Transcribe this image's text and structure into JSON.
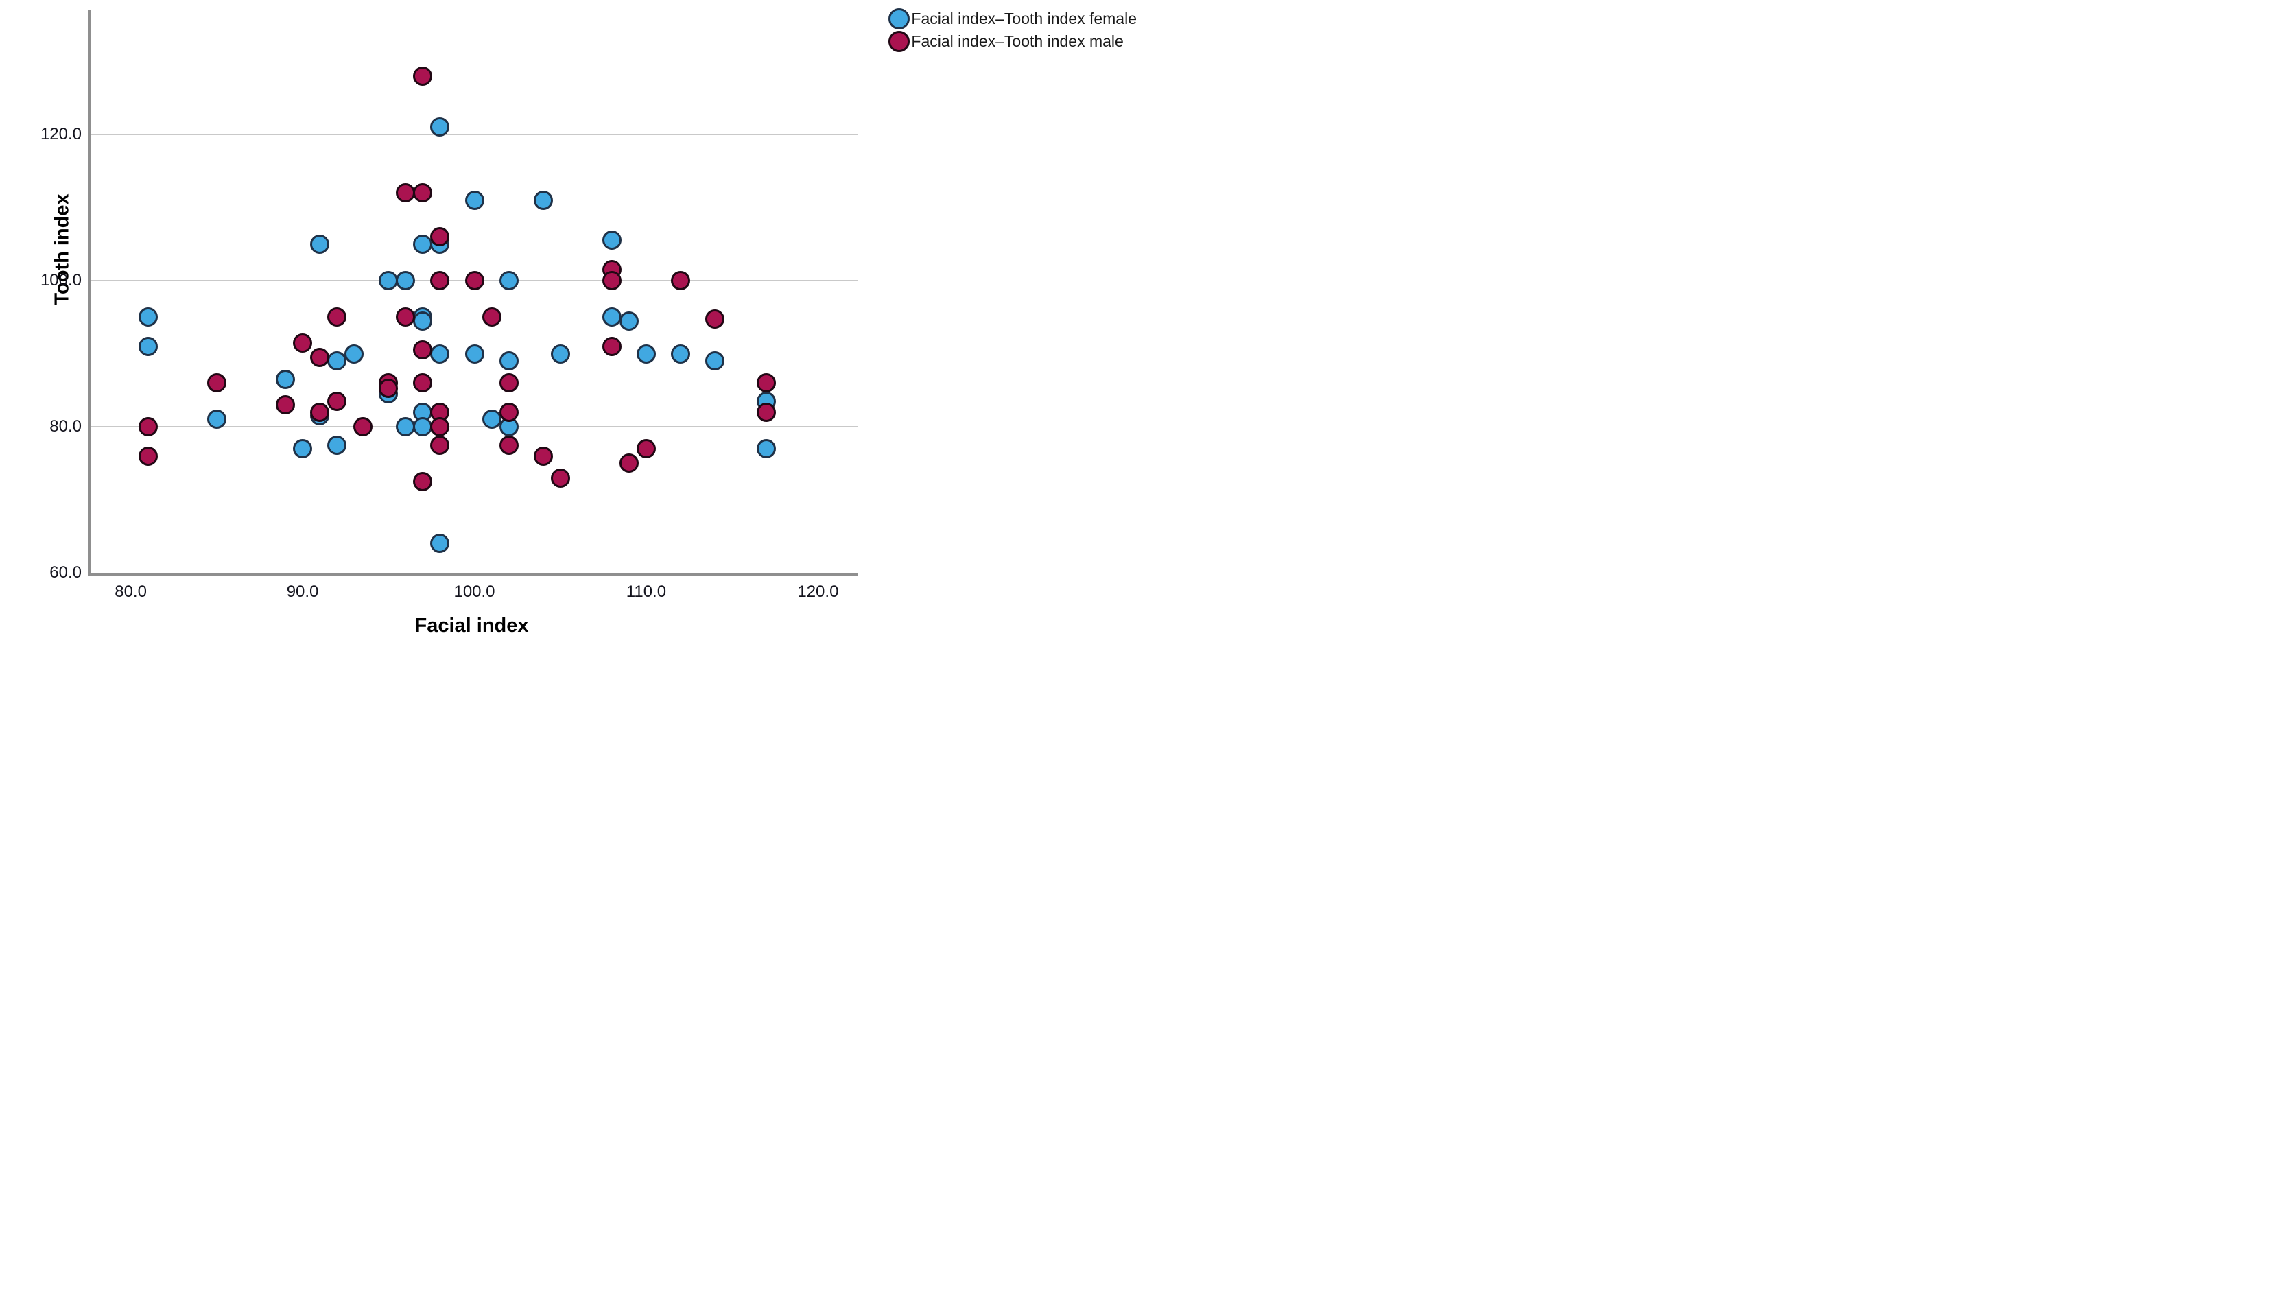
{
  "chart_data": {
    "type": "scatter",
    "title": "",
    "xlabel": "Facial index",
    "ylabel": "Tooth index",
    "xlim": [
      77.7,
      122.3
    ],
    "ylim": [
      60,
      137
    ],
    "grid": "horizontal-only",
    "legend_position": "top-right",
    "x_ticks": [
      {
        "v": 80,
        "label": "80.0"
      },
      {
        "v": 90,
        "label": "90.0"
      },
      {
        "v": 100,
        "label": "100.0"
      },
      {
        "v": 110,
        "label": "110.0"
      },
      {
        "v": 120,
        "label": "120.0"
      }
    ],
    "y_ticks": [
      {
        "v": 60,
        "label": "60.0"
      },
      {
        "v": 80,
        "label": "80.0"
      },
      {
        "v": 100,
        "label": "100.0"
      },
      {
        "v": 120,
        "label": "120.0"
      }
    ],
    "y_gridlines": [
      80,
      100,
      120
    ],
    "colors": {
      "female_fill": "#41A8E1",
      "female_stroke": "#1F3147",
      "male_fill": "#AA1350",
      "male_stroke": "#200814",
      "gridline": "#C9C9C9",
      "axis": "#8F8F8F",
      "tick_text": "#14141E"
    },
    "series": [
      {
        "name": "Facial index–Tooth index female",
        "key": "female",
        "points": [
          [
            81,
            95
          ],
          [
            81,
            91
          ],
          [
            85,
            81
          ],
          [
            89,
            86.5
          ],
          [
            90,
            77
          ],
          [
            91,
            105
          ],
          [
            91,
            81.5
          ],
          [
            92,
            89
          ],
          [
            92,
            77.5
          ],
          [
            93,
            90
          ],
          [
            95,
            100
          ],
          [
            95,
            84.5
          ],
          [
            96,
            100
          ],
          [
            96,
            80
          ],
          [
            97,
            105
          ],
          [
            97,
            95
          ],
          [
            97,
            94.5
          ],
          [
            97,
            82
          ],
          [
            97,
            80
          ],
          [
            98,
            121
          ],
          [
            98,
            105
          ],
          [
            98,
            90
          ],
          [
            98,
            64
          ],
          [
            100,
            111
          ],
          [
            100,
            90
          ],
          [
            101,
            81
          ],
          [
            102,
            100
          ],
          [
            102,
            89
          ],
          [
            102,
            80
          ],
          [
            104,
            111
          ],
          [
            105,
            90
          ],
          [
            108,
            105.5
          ],
          [
            108,
            95
          ],
          [
            109,
            94.5
          ],
          [
            110,
            90
          ],
          [
            112,
            90
          ],
          [
            114,
            89
          ],
          [
            117,
            83.5
          ],
          [
            117,
            77
          ]
        ]
      },
      {
        "name": "Facial index–Tooth index male",
        "key": "male",
        "points": [
          [
            81,
            80
          ],
          [
            81,
            76
          ],
          [
            85,
            86
          ],
          [
            89,
            83
          ],
          [
            90,
            91.5
          ],
          [
            91,
            89.5
          ],
          [
            91,
            82
          ],
          [
            92,
            95
          ],
          [
            92,
            83.5
          ],
          [
            93.5,
            80
          ],
          [
            95,
            86
          ],
          [
            95,
            85.3
          ],
          [
            96,
            112
          ],
          [
            96,
            95
          ],
          [
            97,
            128
          ],
          [
            97,
            112
          ],
          [
            97,
            90.5
          ],
          [
            97,
            86
          ],
          [
            97,
            72.5
          ],
          [
            98,
            106
          ],
          [
            98,
            100
          ],
          [
            98,
            82
          ],
          [
            98,
            80
          ],
          [
            98,
            77.5
          ],
          [
            100,
            100
          ],
          [
            101,
            95
          ],
          [
            102,
            86
          ],
          [
            102,
            82
          ],
          [
            102,
            77.5
          ],
          [
            104,
            76
          ],
          [
            105,
            73
          ],
          [
            108,
            101.5
          ],
          [
            108,
            100
          ],
          [
            108,
            91
          ],
          [
            109,
            75
          ],
          [
            110,
            77
          ],
          [
            112,
            100
          ],
          [
            114,
            94.7
          ],
          [
            117,
            86
          ],
          [
            117,
            82
          ]
        ]
      }
    ]
  }
}
